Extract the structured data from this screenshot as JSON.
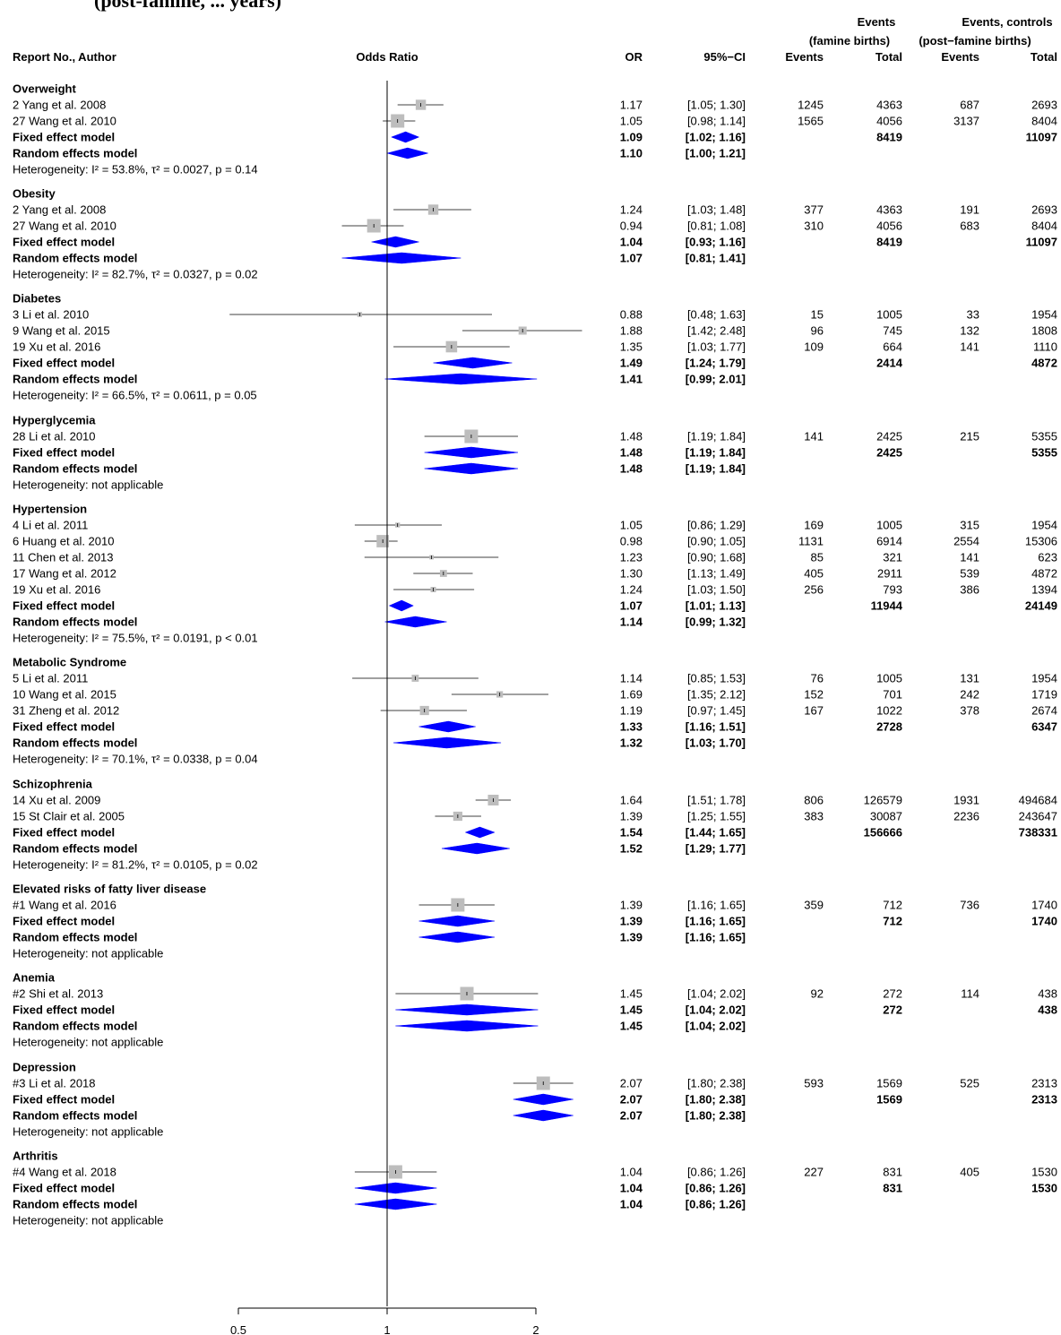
{
  "title_fragment": "(post-famine, ... years)",
  "header": {
    "study_col": "Report No., Author",
    "plot_col": "Odds Ratio",
    "or_col": "OR",
    "ci_col": "95%−CI",
    "famine_group": [
      "Events",
      "(famine births)"
    ],
    "control_group": [
      "Events, controls",
      "(post−famine births)"
    ],
    "events_label": "Events",
    "total_label": "Total"
  },
  "colors": {
    "diamond": "#0000ff",
    "box": "#bdbdbd",
    "subgroup_text": "#bdbdbd",
    "study_text": "#000000"
  },
  "chart_data": {
    "type": "forest",
    "measure": "Odds Ratio",
    "x_scale": "log",
    "xlim": [
      0.5,
      2.44
    ],
    "x_ticks": [
      0.5,
      1,
      2
    ],
    "x_tick_labels": [
      "0.5",
      "1",
      "2"
    ],
    "reference_line": 1,
    "subgroups": [
      {
        "name": "Overweight",
        "studies": [
          {
            "label": "2    Yang et al. 2008",
            "or": 1.17,
            "lo": 1.05,
            "hi": 1.3,
            "or_text": "1.17",
            "ci_text": "[1.05; 1.30]",
            "e1": "1245",
            "n1": "4363",
            "e2": "687",
            "n2": "2693",
            "w": 0.7
          },
          {
            "label": "27  Wang et al. 2010",
            "or": 1.05,
            "lo": 0.98,
            "hi": 1.14,
            "or_text": "1.05",
            "ci_text": "[0.98; 1.14]",
            "e1": "1565",
            "n1": "4056",
            "e2": "3137",
            "n2": "8404",
            "w": 1.0
          }
        ],
        "fixed": {
          "label": "Fixed effect model",
          "or": 1.09,
          "lo": 1.02,
          "hi": 1.16,
          "or_text": "1.09",
          "ci_text": "[1.02; 1.16]",
          "n1": "8419",
          "n2": "11097"
        },
        "random": {
          "label": "Random effects model",
          "or": 1.1,
          "lo": 1.0,
          "hi": 1.21,
          "or_text": "1.10",
          "ci_text": "[1.00; 1.21]"
        },
        "heterogeneity": "Heterogeneity: I² = 53.8%, τ² = 0.0027, p = 0.14"
      },
      {
        "name": "Obesity",
        "studies": [
          {
            "label": "2    Yang et al. 2008",
            "or": 1.24,
            "lo": 1.03,
            "hi": 1.48,
            "or_text": "1.24",
            "ci_text": "[1.03; 1.48]",
            "e1": "377",
            "n1": "4363",
            "e2": "191",
            "n2": "2693",
            "w": 0.7
          },
          {
            "label": "27  Wang et al. 2010",
            "or": 0.94,
            "lo": 0.81,
            "hi": 1.08,
            "or_text": "0.94",
            "ci_text": "[0.81; 1.08]",
            "e1": "310",
            "n1": "4056",
            "e2": "683",
            "n2": "8404",
            "w": 1.0
          }
        ],
        "fixed": {
          "label": "Fixed effect model",
          "or": 1.04,
          "lo": 0.93,
          "hi": 1.16,
          "or_text": "1.04",
          "ci_text": "[0.93; 1.16]",
          "n1": "8419",
          "n2": "11097"
        },
        "random": {
          "label": "Random effects model",
          "or": 1.07,
          "lo": 0.81,
          "hi": 1.41,
          "or_text": "1.07",
          "ci_text": "[0.81; 1.41]"
        },
        "heterogeneity": "Heterogeneity: I² = 82.7%, τ² = 0.0327, p = 0.02"
      },
      {
        "name": "Diabetes",
        "studies": [
          {
            "label": "3    Li et al. 2010",
            "or": 0.88,
            "lo": 0.48,
            "hi": 1.63,
            "or_text": "0.88",
            "ci_text": "[0.48; 1.63]",
            "e1": "15",
            "n1": "1005",
            "e2": "33",
            "n2": "1954",
            "w": 0.2
          },
          {
            "label": "9    Wang et al. 2015",
            "or": 1.88,
            "lo": 1.42,
            "hi": 2.48,
            "or_text": "1.88",
            "ci_text": "[1.42; 2.48]",
            "e1": "96",
            "n1": "745",
            "e2": "132",
            "n2": "1808",
            "w": 0.5
          },
          {
            "label": "19  Xu et al. 2016",
            "or": 1.35,
            "lo": 1.03,
            "hi": 1.77,
            "or_text": "1.35",
            "ci_text": "[1.03; 1.77]",
            "e1": "109",
            "n1": "664",
            "e2": "141",
            "n2": "1110",
            "w": 0.8
          }
        ],
        "fixed": {
          "label": "Fixed effect model",
          "or": 1.49,
          "lo": 1.24,
          "hi": 1.79,
          "or_text": "1.49",
          "ci_text": "[1.24; 1.79]",
          "n1": "2414",
          "n2": "4872"
        },
        "random": {
          "label": "Random effects model",
          "or": 1.41,
          "lo": 0.99,
          "hi": 2.01,
          "or_text": "1.41",
          "ci_text": "[0.99; 2.01]"
        },
        "heterogeneity": "Heterogeneity: I² = 66.5%, τ² = 0.0611, p = 0.05"
      },
      {
        "name": "Hyperglycemia",
        "studies": [
          {
            "label": "28  Li et al. 2010",
            "or": 1.48,
            "lo": 1.19,
            "hi": 1.84,
            "or_text": "1.48",
            "ci_text": "[1.19; 1.84]",
            "e1": "141",
            "n1": "2425",
            "e2": "215",
            "n2": "5355",
            "w": 1.0
          }
        ],
        "fixed": {
          "label": "Fixed effect model",
          "or": 1.48,
          "lo": 1.19,
          "hi": 1.84,
          "or_text": "1.48",
          "ci_text": "[1.19; 1.84]",
          "n1": "2425",
          "n2": "5355"
        },
        "random": {
          "label": "Random effects model",
          "or": 1.48,
          "lo": 1.19,
          "hi": 1.84,
          "or_text": "1.48",
          "ci_text": "[1.19; 1.84]"
        },
        "heterogeneity": "Heterogeneity: not applicable"
      },
      {
        "name": "Hypertension",
        "studies": [
          {
            "label": "4    Li et al. 2011",
            "or": 1.05,
            "lo": 0.86,
            "hi": 1.29,
            "or_text": "1.05",
            "ci_text": "[0.86; 1.29]",
            "e1": "169",
            "n1": "1005",
            "e2": "315",
            "n2": "1954",
            "w": 0.2
          },
          {
            "label": "6    Huang et al. 2010",
            "or": 0.98,
            "lo": 0.9,
            "hi": 1.05,
            "or_text": "0.98",
            "ci_text": "[0.90; 1.05]",
            "e1": "1131",
            "n1": "6914",
            "e2": "2554",
            "n2": "15306",
            "w": 0.9
          },
          {
            "label": "11  Chen et al. 2013",
            "or": 1.23,
            "lo": 0.9,
            "hi": 1.68,
            "or_text": "1.23",
            "ci_text": "[0.90; 1.68]",
            "e1": "85",
            "n1": "321",
            "e2": "141",
            "n2": "623",
            "w": 0.15
          },
          {
            "label": "17  Wang et al. 2012",
            "or": 1.3,
            "lo": 1.13,
            "hi": 1.49,
            "or_text": "1.30",
            "ci_text": "[1.13; 1.49]",
            "e1": "405",
            "n1": "2911",
            "e2": "539",
            "n2": "4872",
            "w": 0.4
          },
          {
            "label": "19  Xu et al. 2016",
            "or": 1.24,
            "lo": 1.03,
            "hi": 1.5,
            "or_text": "1.24",
            "ci_text": "[1.03; 1.50]",
            "e1": "256",
            "n1": "793",
            "e2": "386",
            "n2": "1394",
            "w": 0.25
          }
        ],
        "fixed": {
          "label": "Fixed effect model",
          "or": 1.07,
          "lo": 1.01,
          "hi": 1.13,
          "or_text": "1.07",
          "ci_text": "[1.01; 1.13]",
          "n1": "11944",
          "n2": "24149"
        },
        "random": {
          "label": "Random effects model",
          "or": 1.14,
          "lo": 0.99,
          "hi": 1.32,
          "or_text": "1.14",
          "ci_text": "[0.99; 1.32]"
        },
        "heterogeneity": "Heterogeneity: I² = 75.5%, τ² = 0.0191, p < 0.01"
      },
      {
        "name": "Metabolic Syndrome",
        "studies": [
          {
            "label": "5    Li et al. 2011",
            "or": 1.14,
            "lo": 0.85,
            "hi": 1.53,
            "or_text": "1.14",
            "ci_text": "[0.85; 1.53]",
            "e1": "76",
            "n1": "1005",
            "e2": "131",
            "n2": "1954",
            "w": 0.4
          },
          {
            "label": "10  Wang et al. 2015",
            "or": 1.69,
            "lo": 1.35,
            "hi": 2.12,
            "or_text": "1.69",
            "ci_text": "[1.35; 2.12]",
            "e1": "152",
            "n1": "701",
            "e2": "242",
            "n2": "1719",
            "w": 0.35
          },
          {
            "label": "31  Zheng et al. 2012",
            "or": 1.19,
            "lo": 0.97,
            "hi": 1.45,
            "or_text": "1.19",
            "ci_text": "[0.97; 1.45]",
            "e1": "167",
            "n1": "1022",
            "e2": "378",
            "n2": "2674",
            "w": 0.6
          }
        ],
        "fixed": {
          "label": "Fixed effect model",
          "or": 1.33,
          "lo": 1.16,
          "hi": 1.51,
          "or_text": "1.33",
          "ci_text": "[1.16; 1.51]",
          "n1": "2728",
          "n2": "6347"
        },
        "random": {
          "label": "Random effects model",
          "or": 1.32,
          "lo": 1.03,
          "hi": 1.7,
          "or_text": "1.32",
          "ci_text": "[1.03; 1.70]"
        },
        "heterogeneity": "Heterogeneity: I² = 70.1%, τ² = 0.0338, p = 0.04"
      },
      {
        "name": "Schizophrenia",
        "studies": [
          {
            "label": "14  Xu et al. 2009",
            "or": 1.64,
            "lo": 1.51,
            "hi": 1.78,
            "or_text": "1.64",
            "ci_text": "[1.51; 1.78]",
            "e1": "806",
            "n1": "126579",
            "e2": "1931",
            "n2": "494684",
            "w": 0.75
          },
          {
            "label": "15  St Clair et al. 2005",
            "or": 1.39,
            "lo": 1.25,
            "hi": 1.55,
            "or_text": "1.39",
            "ci_text": "[1.25; 1.55]",
            "e1": "383",
            "n1": "30087",
            "e2": "2236",
            "n2": "243647",
            "w": 0.6
          }
        ],
        "fixed": {
          "label": "Fixed effect model",
          "or": 1.54,
          "lo": 1.44,
          "hi": 1.65,
          "or_text": "1.54",
          "ci_text": "[1.44; 1.65]",
          "n1": "156666",
          "n2": "738331"
        },
        "random": {
          "label": "Random effects model",
          "or": 1.52,
          "lo": 1.29,
          "hi": 1.77,
          "or_text": "1.52",
          "ci_text": "[1.29; 1.77]"
        },
        "heterogeneity": "Heterogeneity: I² = 81.2%, τ² = 0.0105, p = 0.02"
      },
      {
        "name": "Elevated risks of fatty liver disease",
        "studies": [
          {
            "label": "#1  Wang et al. 2016",
            "or": 1.39,
            "lo": 1.16,
            "hi": 1.65,
            "or_text": "1.39",
            "ci_text": "[1.16; 1.65]",
            "e1": "359",
            "n1": "712",
            "e2": "736",
            "n2": "1740",
            "w": 1.0
          }
        ],
        "fixed": {
          "label": "Fixed effect model",
          "or": 1.39,
          "lo": 1.16,
          "hi": 1.65,
          "or_text": "1.39",
          "ci_text": "[1.16; 1.65]",
          "n1": "712",
          "n2": "1740"
        },
        "random": {
          "label": "Random effects model",
          "or": 1.39,
          "lo": 1.16,
          "hi": 1.65,
          "or_text": "1.39",
          "ci_text": "[1.16; 1.65]"
        },
        "heterogeneity": "Heterogeneity: not applicable"
      },
      {
        "name": "Anemia",
        "studies": [
          {
            "label": "#2  Shi et al. 2013",
            "or": 1.45,
            "lo": 1.04,
            "hi": 2.02,
            "or_text": "1.45",
            "ci_text": "[1.04; 2.02]",
            "e1": "92",
            "n1": "272",
            "e2": "114",
            "n2": "438",
            "w": 1.0
          }
        ],
        "fixed": {
          "label": "Fixed effect model",
          "or": 1.45,
          "lo": 1.04,
          "hi": 2.02,
          "or_text": "1.45",
          "ci_text": "[1.04; 2.02]",
          "n1": "272",
          "n2": "438"
        },
        "random": {
          "label": "Random effects model",
          "or": 1.45,
          "lo": 1.04,
          "hi": 2.02,
          "or_text": "1.45",
          "ci_text": "[1.04; 2.02]"
        },
        "heterogeneity": "Heterogeneity: not applicable"
      },
      {
        "name": "Depression",
        "studies": [
          {
            "label": "#3  Li et al. 2018",
            "or": 2.07,
            "lo": 1.8,
            "hi": 2.38,
            "or_text": "2.07",
            "ci_text": "[1.80; 2.38]",
            "e1": "593",
            "n1": "1569",
            "e2": "525",
            "n2": "2313",
            "w": 1.0
          }
        ],
        "fixed": {
          "label": "Fixed effect model",
          "or": 2.07,
          "lo": 1.8,
          "hi": 2.38,
          "or_text": "2.07",
          "ci_text": "[1.80; 2.38]",
          "n1": "1569",
          "n2": "2313"
        },
        "random": {
          "label": "Random effects model",
          "or": 2.07,
          "lo": 1.8,
          "hi": 2.38,
          "or_text": "2.07",
          "ci_text": "[1.80; 2.38]"
        },
        "heterogeneity": "Heterogeneity: not applicable"
      },
      {
        "name": "Arthritis",
        "studies": [
          {
            "label": "#4  Wang et al. 2018",
            "or": 1.04,
            "lo": 0.86,
            "hi": 1.26,
            "or_text": "1.04",
            "ci_text": "[0.86; 1.26]",
            "e1": "227",
            "n1": "831",
            "e2": "405",
            "n2": "1530",
            "w": 1.0
          }
        ],
        "fixed": {
          "label": "Fixed effect model",
          "or": 1.04,
          "lo": 0.86,
          "hi": 1.26,
          "or_text": "1.04",
          "ci_text": "[0.86; 1.26]",
          "n1": "831",
          "n2": "1530"
        },
        "random": {
          "label": "Random effects model",
          "or": 1.04,
          "lo": 0.86,
          "hi": 1.26,
          "or_text": "1.04",
          "ci_text": "[0.86; 1.26]"
        },
        "heterogeneity": "Heterogeneity: not applicable"
      }
    ]
  }
}
